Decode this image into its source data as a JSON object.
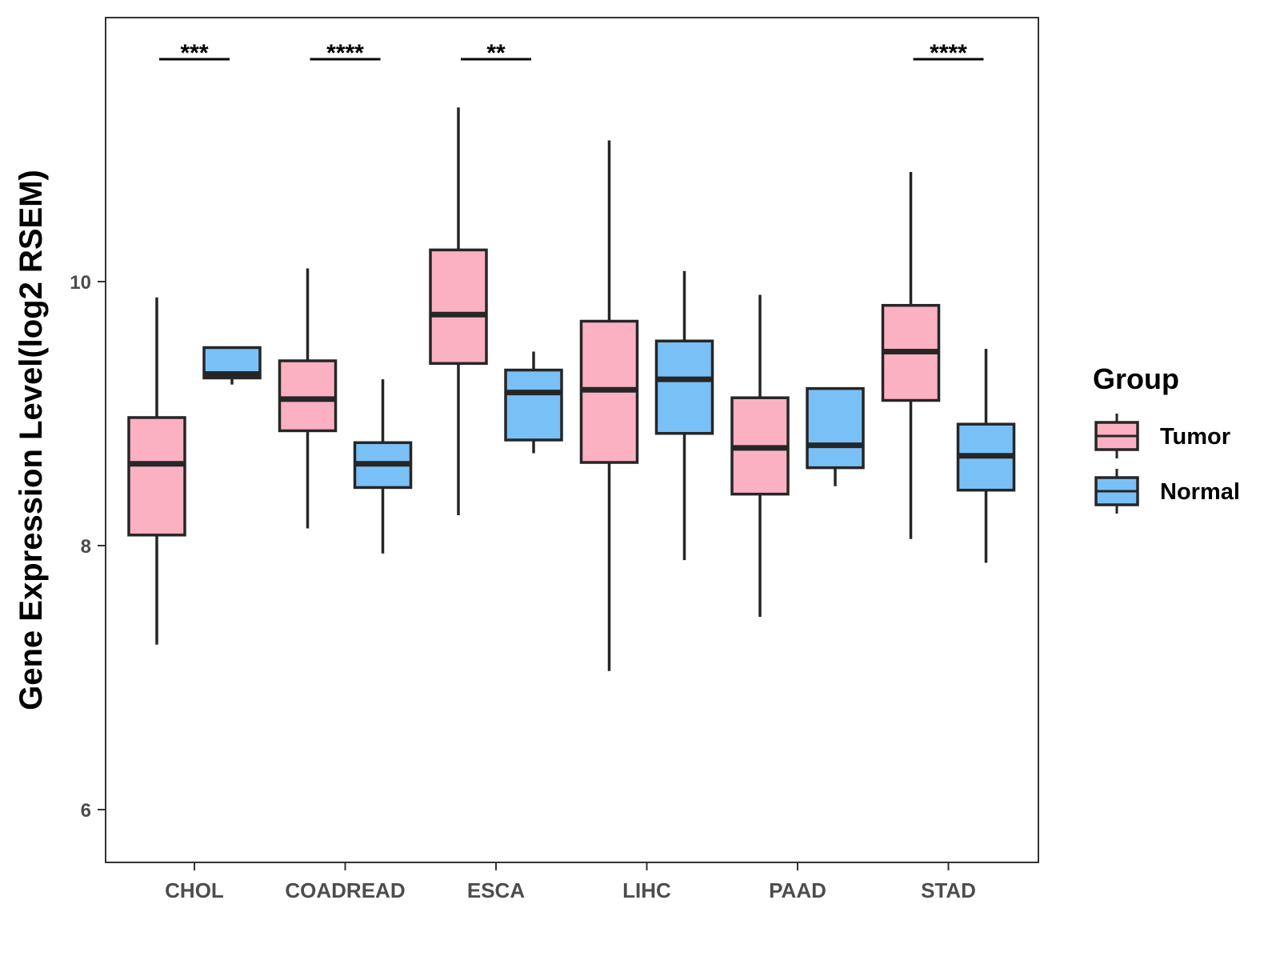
{
  "chart_data": {
    "type": "boxplot",
    "title": "",
    "xlabel": "",
    "ylabel": "Gene Expression Level(log2 RSEM)",
    "ylim": [
      5.6,
      12.0
    ],
    "yticks": [
      6,
      8,
      10
    ],
    "categories": [
      "CHOL",
      "COADREAD",
      "ESCA",
      "LIHC",
      "PAAD",
      "STAD"
    ],
    "legend": {
      "title": "Group",
      "position": "right",
      "entries": [
        {
          "name": "Tumor",
          "color": "#fcb1c2"
        },
        {
          "name": "Normal",
          "color": "#79c0f7"
        }
      ]
    },
    "series": [
      {
        "name": "Tumor",
        "color": "#fcb1c2",
        "boxes": [
          {
            "whisker_low": 7.25,
            "q1": 8.08,
            "median": 8.62,
            "q3": 8.97,
            "whisker_high": 9.88
          },
          {
            "whisker_low": 8.13,
            "q1": 8.87,
            "median": 9.11,
            "q3": 9.4,
            "whisker_high": 10.1
          },
          {
            "whisker_low": 8.23,
            "q1": 9.38,
            "median": 9.75,
            "q3": 10.24,
            "whisker_high": 11.32
          },
          {
            "whisker_low": 7.05,
            "q1": 8.63,
            "median": 9.18,
            "q3": 9.7,
            "whisker_high": 11.07
          },
          {
            "whisker_low": 7.46,
            "q1": 8.39,
            "median": 8.74,
            "q3": 9.12,
            "whisker_high": 9.9
          },
          {
            "whisker_low": 8.05,
            "q1": 9.1,
            "median": 9.47,
            "q3": 9.82,
            "whisker_high": 10.83
          }
        ]
      },
      {
        "name": "Normal",
        "color": "#79c0f7",
        "boxes": [
          {
            "whisker_low": 9.22,
            "q1": 9.27,
            "median": 9.3,
            "q3": 9.5,
            "whisker_high": 9.5
          },
          {
            "whisker_low": 7.94,
            "q1": 8.44,
            "median": 8.62,
            "q3": 8.78,
            "whisker_high": 9.26
          },
          {
            "whisker_low": 8.7,
            "q1": 8.8,
            "median": 9.16,
            "q3": 9.33,
            "whisker_high": 9.47
          },
          {
            "whisker_low": 7.89,
            "q1": 8.85,
            "median": 9.26,
            "q3": 9.55,
            "whisker_high": 10.08
          },
          {
            "whisker_low": 8.45,
            "q1": 8.59,
            "median": 8.76,
            "q3": 9.19,
            "whisker_high": 9.19
          },
          {
            "whisker_low": 7.87,
            "q1": 8.42,
            "median": 8.68,
            "q3": 8.92,
            "whisker_high": 9.49
          }
        ]
      }
    ],
    "annotations": [
      {
        "category": "CHOL",
        "label": "***"
      },
      {
        "category": "COADREAD",
        "label": "****"
      },
      {
        "category": "ESCA",
        "label": "**"
      },
      {
        "category": "STAD",
        "label": "****"
      }
    ],
    "grid": false
  }
}
